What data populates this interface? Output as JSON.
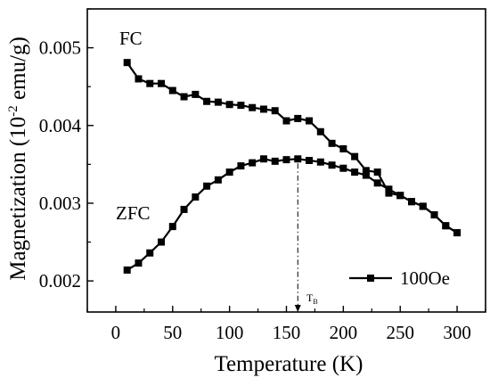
{
  "chart_data": {
    "type": "line",
    "title": "",
    "xlabel": "Temperature (K)",
    "ylabel_parts": {
      "pre": "Magnetization (10",
      "sup": "-2",
      "post": " emu/g)"
    },
    "xlim": [
      -25,
      325
    ],
    "ylim": [
      0.0016,
      0.0055
    ],
    "xticks": [
      0,
      50,
      100,
      150,
      200,
      250,
      300
    ],
    "xtick_labels": [
      "0",
      "50",
      "100",
      "150",
      "200",
      "250",
      "300"
    ],
    "yticks": [
      0.002,
      0.003,
      0.004,
      0.005
    ],
    "ytick_labels": [
      "0.002",
      "0.003",
      "0.004",
      "0.005"
    ],
    "legend": {
      "label": "100Oe",
      "position": "bottom-right"
    },
    "annotations": {
      "fc": "FC",
      "zfc": "ZFC",
      "tb_main": "T",
      "tb_sub": "B"
    },
    "blocking_temperature_K": 160,
    "x": [
      10,
      20,
      30,
      40,
      50,
      60,
      70,
      80,
      90,
      100,
      110,
      120,
      130,
      140,
      150,
      160,
      170,
      180,
      190,
      200,
      210,
      220,
      230,
      240,
      250,
      260,
      270,
      280,
      290,
      300
    ],
    "series": [
      {
        "name": "FC",
        "values": [
          0.00481,
          0.0046,
          0.00454,
          0.00454,
          0.00445,
          0.00437,
          0.0044,
          0.00431,
          0.0043,
          0.00427,
          0.00426,
          0.00423,
          0.00421,
          0.00419,
          0.00406,
          0.00409,
          0.00406,
          0.00392,
          0.00377,
          0.0037,
          0.0036,
          0.00342,
          0.0034,
          0.00313,
          0.0031,
          0.00302,
          0.00296,
          0.00285,
          0.00271,
          0.00262
        ]
      },
      {
        "name": "ZFC",
        "values": [
          0.00214,
          0.00223,
          0.00236,
          0.0025,
          0.0027,
          0.00292,
          0.00308,
          0.00322,
          0.0033,
          0.0034,
          0.00348,
          0.00352,
          0.00357,
          0.00354,
          0.00356,
          0.00357,
          0.00355,
          0.00353,
          0.00349,
          0.00345,
          0.0034,
          0.00336,
          0.00326,
          0.00318,
          0.0031,
          0.00302,
          0.00296,
          0.00285,
          0.00271,
          0.00262
        ]
      }
    ]
  }
}
